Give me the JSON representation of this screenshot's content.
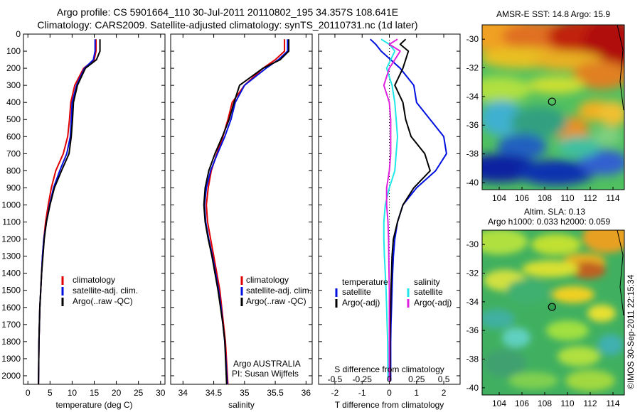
{
  "header": {
    "title_line1": "Argo profile: CS 5901664_110 30-Jul-2011 20110802_195 34.357S 108.641E",
    "title_line2": "Climatology: CARS2009. Satellite-adjusted climatology: synTS_20110731.nc (1d later)"
  },
  "colors": {
    "climatology": "#e00000",
    "satellite": "#0010e0",
    "argo": "#000000",
    "satellite_salinity": "#20e8e8",
    "argo_salinity": "#e020e0"
  },
  "chart_data": [
    {
      "id": "temperature",
      "type": "line",
      "xlabel": "temperature (deg C)",
      "ylabel": "",
      "xlim": [
        -1,
        31
      ],
      "ylim": [
        2050,
        0
      ],
      "xticks": [
        0,
        5,
        10,
        15,
        20,
        25,
        30
      ],
      "yticks": [
        0,
        100,
        200,
        300,
        400,
        500,
        600,
        700,
        800,
        900,
        1000,
        1100,
        1200,
        1300,
        1400,
        1500,
        1600,
        1700,
        1800,
        1900,
        2000
      ],
      "legend": {
        "placement": "lower-middle",
        "entries": [
          "climatology",
          "satellite-adj. clim.",
          "Argo(..raw -QC)"
        ]
      },
      "series": [
        {
          "name": "climatology",
          "color": "#e00000",
          "x": [
            15.4,
            15.4,
            15.0,
            12.6,
            10.6,
            9.7,
            9.4,
            9.0,
            8.0,
            6.3,
            5.3,
            4.6,
            4.0,
            3.6,
            3.3,
            3.1,
            2.9,
            2.7,
            2.6,
            2.5,
            2.4
          ],
          "y": [
            30,
            100,
            150,
            200,
            300,
            400,
            500,
            600,
            700,
            800,
            900,
            1000,
            1100,
            1200,
            1300,
            1400,
            1500,
            1600,
            1700,
            1800,
            2050
          ]
        },
        {
          "name": "satellite-adj. clim.",
          "color": "#0010e0",
          "x": [
            15.2,
            15.2,
            14.8,
            12.8,
            11.0,
            10.0,
            9.8,
            9.6,
            8.8,
            7.2,
            5.8,
            4.9,
            4.2,
            3.6,
            3.3,
            3.1,
            2.9,
            2.7,
            2.6,
            2.5,
            2.4
          ],
          "y": [
            30,
            100,
            150,
            200,
            300,
            400,
            500,
            600,
            700,
            800,
            900,
            1000,
            1100,
            1200,
            1300,
            1400,
            1500,
            1600,
            1700,
            1800,
            2050
          ]
        },
        {
          "name": "Argo(..raw -QC)",
          "color": "#000000",
          "x": [
            16.3,
            16.3,
            15.5,
            13.0,
            11.2,
            10.3,
            10.1,
            9.8,
            9.3,
            7.6,
            6.0,
            5.0,
            4.2,
            3.7,
            3.4,
            3.1,
            2.9,
            2.7,
            2.6,
            2.5,
            2.4
          ],
          "y": [
            30,
            100,
            150,
            200,
            300,
            400,
            500,
            600,
            700,
            800,
            900,
            1000,
            1100,
            1200,
            1300,
            1400,
            1500,
            1600,
            1700,
            1800,
            2050
          ]
        }
      ]
    },
    {
      "id": "salinity",
      "type": "line",
      "xlabel": "salinity",
      "ylabel": "",
      "xlim": [
        33.8,
        36.1
      ],
      "ylim": [
        2050,
        0
      ],
      "xticks": [
        34,
        34.5,
        35,
        35.5,
        36
      ],
      "legend": {
        "placement": "lower-right",
        "entries": [
          "climatology",
          "satellite-adj. clim.",
          "Argo(..raw -QC)"
        ]
      },
      "annotations": [
        "Argo AUSTRALIA",
        "PI: Susan Wijffels"
      ],
      "series": [
        {
          "name": "climatology",
          "color": "#e00000",
          "x": [
            35.65,
            35.65,
            35.5,
            35.3,
            35.0,
            34.8,
            34.73,
            34.65,
            34.55,
            34.46,
            34.41,
            34.38,
            34.4,
            34.45,
            34.5,
            34.55,
            34.6,
            34.63,
            34.66,
            34.69,
            34.73
          ],
          "y": [
            30,
            100,
            150,
            200,
            300,
            400,
            500,
            600,
            700,
            800,
            900,
            1000,
            1100,
            1200,
            1300,
            1400,
            1500,
            1600,
            1700,
            1800,
            2050
          ]
        },
        {
          "name": "satellite-adj. clim.",
          "color": "#0010e0",
          "x": [
            35.7,
            35.7,
            35.55,
            35.35,
            35.0,
            34.85,
            34.78,
            34.68,
            34.56,
            34.45,
            34.38,
            34.35,
            34.37,
            34.42,
            34.48,
            34.53,
            34.58,
            34.62,
            34.65,
            34.68,
            34.72
          ],
          "y": [
            30,
            100,
            150,
            200,
            300,
            400,
            500,
            600,
            700,
            800,
            900,
            1000,
            1100,
            1200,
            1300,
            1400,
            1500,
            1600,
            1700,
            1800,
            2050
          ]
        },
        {
          "name": "Argo(..raw -QC)",
          "color": "#000000",
          "x": [
            35.72,
            35.72,
            35.58,
            35.3,
            34.92,
            34.83,
            34.75,
            34.64,
            34.52,
            34.42,
            34.36,
            34.34,
            34.36,
            34.41,
            34.47,
            34.52,
            34.57,
            34.61,
            34.65,
            34.68,
            34.71
          ],
          "y": [
            30,
            100,
            150,
            200,
            300,
            400,
            500,
            600,
            700,
            800,
            900,
            1000,
            1100,
            1200,
            1300,
            1400,
            1500,
            1600,
            1700,
            1800,
            2050
          ]
        }
      ]
    },
    {
      "id": "difference",
      "type": "line",
      "xlabel": "T difference from climatology",
      "xlabel_top": "S difference from climatology",
      "xlim": [
        -2.6,
        2.6
      ],
      "ylim": [
        2050,
        0
      ],
      "xticks_T": [
        -2,
        -1,
        0,
        1,
        2
      ],
      "xticks_S_labels": [
        "-0.5",
        "-0.25",
        "0",
        "0.25",
        "0.5"
      ],
      "xticks_S_pos": [
        -2,
        -1,
        0,
        1,
        2
      ],
      "legend": {
        "placement": "lower-middle",
        "groups": [
          {
            "heading": "temperature",
            "entries": [
              "satellite",
              "Argo(-adj)"
            ]
          },
          {
            "heading": "salinity",
            "entries": [
              "satellite",
              "Argo(-adj)"
            ]
          }
        ]
      },
      "series": [
        {
          "name": "T satellite",
          "color": "#0010e0",
          "x": [
            -0.7,
            -0.5,
            -0.3,
            0.4,
            0.9,
            1.0,
            1.5,
            2.0,
            2.1,
            1.7,
            1.0,
            0.5,
            0.3,
            0.2,
            0.15,
            0.12,
            0.1,
            0.08,
            0.06,
            0.05,
            0.05
          ],
          "y": [
            30,
            60,
            100,
            200,
            300,
            400,
            500,
            600,
            700,
            800,
            900,
            1000,
            1100,
            1200,
            1300,
            1400,
            1500,
            1600,
            1700,
            1800,
            2030
          ]
        },
        {
          "name": "T Argo(-adj)",
          "color": "#000000",
          "x": [
            0.6,
            0.4,
            0.7,
            0.5,
            0.2,
            0.5,
            0.6,
            0.8,
            1.3,
            1.5,
            0.9,
            0.5,
            0.3,
            0.15,
            0.1,
            0.08,
            0.06,
            0.05,
            0.04,
            0.03,
            0.03
          ],
          "y": [
            30,
            60,
            100,
            200,
            300,
            400,
            500,
            600,
            700,
            800,
            900,
            1000,
            1100,
            1200,
            1300,
            1400,
            1500,
            1600,
            1700,
            1800,
            2030
          ]
        },
        {
          "name": "S satellite",
          "color": "#20e8e8",
          "x": [
            -0.3,
            0.0,
            0.2,
            -0.1,
            0.1,
            0.2,
            0.25,
            0.3,
            0.25,
            0.2,
            0.0,
            -0.15,
            -0.2,
            -0.2,
            -0.18,
            -0.15,
            -0.12,
            -0.1,
            -0.08,
            -0.06,
            -0.05
          ],
          "y": [
            30,
            60,
            100,
            200,
            300,
            400,
            500,
            600,
            700,
            800,
            900,
            1000,
            1100,
            1200,
            1300,
            1400,
            1500,
            1600,
            1700,
            1800,
            2030
          ]
        },
        {
          "name": "S Argo(-adj)",
          "color": "#e020e0",
          "x": [
            0.3,
            0.0,
            0.4,
            0.0,
            -0.2,
            0.0,
            0.05,
            0.05,
            0.05,
            0.0,
            -0.1,
            -0.1,
            -0.05,
            -0.03,
            -0.02,
            -0.01,
            0.0,
            0.0,
            0.0,
            0.0,
            0.0
          ],
          "y": [
            30,
            60,
            100,
            200,
            300,
            400,
            500,
            600,
            700,
            800,
            900,
            1000,
            1100,
            1200,
            1300,
            1400,
            1500,
            1600,
            1700,
            1800,
            2030
          ]
        }
      ]
    },
    {
      "id": "sst_map",
      "type": "heatmap",
      "title": "AMSR-E SST: 14.8 Argo: 15.9",
      "xlim": [
        102.5,
        115
      ],
      "ylim": [
        -40.5,
        -29
      ],
      "xticks": [
        104,
        106,
        108,
        110,
        112,
        114
      ],
      "yticks": [
        -30,
        -32,
        -34,
        -36,
        -38,
        -40
      ],
      "marker": {
        "lon": 108.641,
        "lat": -34.357,
        "style": "open-circle"
      }
    },
    {
      "id": "sla_map",
      "type": "heatmap",
      "title": "Altim. SLA: 0.13",
      "subtitle": "Argo h1000: 0.033 h2000: 0.059",
      "xlim": [
        102.5,
        115
      ],
      "ylim": [
        -40.5,
        -29
      ],
      "xticks": [
        104,
        106,
        108,
        110,
        112,
        114
      ],
      "yticks": [
        -30,
        -32,
        -34,
        -36,
        -38,
        -40
      ],
      "marker": {
        "lon": 108.641,
        "lat": -34.357,
        "style": "filled-circle"
      }
    }
  ],
  "footer": {
    "stamp": "©IMOS 30-Sep-2011 22:15:34"
  }
}
